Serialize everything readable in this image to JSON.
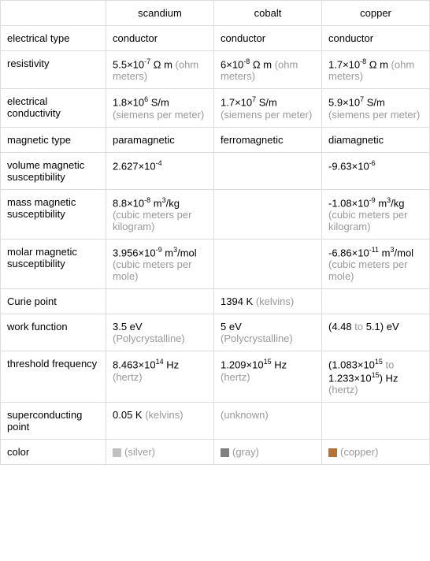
{
  "table": {
    "border_color": "#dddddd",
    "background_color": "#ffffff",
    "text_color": "#000000",
    "unit_color": "#999999",
    "columns": [
      "scandium",
      "cobalt",
      "copper"
    ],
    "rows": [
      {
        "label": "electrical type",
        "cells": [
          {
            "value": "conductor"
          },
          {
            "value": "conductor"
          },
          {
            "value": "conductor"
          }
        ]
      },
      {
        "label": "resistivity",
        "cells": [
          {
            "prefix": "5.5×10",
            "exp": "-7",
            "suffix": " Ω m",
            "unit": "(ohm meters)"
          },
          {
            "prefix": "6×10",
            "exp": "-8",
            "suffix": " Ω m",
            "unit": "(ohm meters)"
          },
          {
            "prefix": "1.7×10",
            "exp": "-8",
            "suffix": " Ω m",
            "unit": "(ohm meters)"
          }
        ]
      },
      {
        "label": "electrical conductivity",
        "cells": [
          {
            "prefix": "1.8×10",
            "exp": "6",
            "suffix": " S/m",
            "unit": "(siemens per meter)"
          },
          {
            "prefix": "1.7×10",
            "exp": "7",
            "suffix": " S/m",
            "unit": "(siemens per meter)"
          },
          {
            "prefix": "5.9×10",
            "exp": "7",
            "suffix": " S/m",
            "unit": "(siemens per meter)"
          }
        ]
      },
      {
        "label": "magnetic type",
        "cells": [
          {
            "value": "paramagnetic"
          },
          {
            "value": "ferromagnetic"
          },
          {
            "value": "diamagnetic"
          }
        ]
      },
      {
        "label": "volume magnetic susceptibility",
        "cells": [
          {
            "prefix": "2.627×10",
            "exp": "-4"
          },
          {},
          {
            "prefix": "-9.63×10",
            "exp": "-6"
          }
        ]
      },
      {
        "label": "mass magnetic susceptibility",
        "cells": [
          {
            "prefix": "8.8×10",
            "exp": "-8",
            "suffix": " m",
            "exp2": "3",
            "suffix2": "/kg",
            "unit": "(cubic meters per kilogram)"
          },
          {},
          {
            "prefix": "-1.08×10",
            "exp": "-9",
            "suffix": " m",
            "exp2": "3",
            "suffix2": "/kg",
            "unit": "(cubic meters per kilogram)"
          }
        ]
      },
      {
        "label": "molar magnetic susceptibility",
        "cells": [
          {
            "prefix": "3.956×10",
            "exp": "-9",
            "suffix": " m",
            "exp2": "3",
            "suffix2": "/mol",
            "unit": "(cubic meters per mole)"
          },
          {},
          {
            "prefix": "-6.86×10",
            "exp": "-11",
            "suffix": " m",
            "exp2": "3",
            "suffix2": "/mol",
            "unit": "(cubic meters per mole)"
          }
        ]
      },
      {
        "label": "Curie point",
        "cells": [
          {},
          {
            "value": "1394 K",
            "unit": "(kelvins)"
          },
          {}
        ]
      },
      {
        "label": "work function",
        "cells": [
          {
            "value": "3.5 eV",
            "unit": "(Polycrystalline)"
          },
          {
            "value": "5 eV",
            "unit": "(Polycrystalline)"
          },
          {
            "value_parts": [
              "(4.48 ",
              "to",
              " 5.1) eV"
            ],
            "to_gray": true
          }
        ]
      },
      {
        "label": "threshold frequency",
        "cells": [
          {
            "prefix": "8.463×10",
            "exp": "14",
            "suffix": " Hz",
            "unit": "(hertz)"
          },
          {
            "prefix": "1.209×10",
            "exp": "15",
            "suffix": " Hz",
            "unit": "(hertz)"
          },
          {
            "range_prefix1": "(1.083×10",
            "range_exp1": "15",
            "range_mid": " to ",
            "range_prefix2": "1.233×10",
            "range_exp2": "15",
            "range_suffix": ") Hz",
            "unit": "(hertz)",
            "to_gray": true
          }
        ]
      },
      {
        "label": "superconducting point",
        "cells": [
          {
            "value": "0.05 K",
            "unit": "(kelvins)"
          },
          {
            "unknown": "(unknown)"
          },
          {}
        ]
      },
      {
        "label": "color",
        "cells": [
          {
            "swatch": "#c0c0c0",
            "color_label": "(silver)"
          },
          {
            "swatch": "#808080",
            "color_label": "(gray)"
          },
          {
            "swatch": "#b87333",
            "color_label": "(copper)"
          }
        ]
      }
    ]
  }
}
